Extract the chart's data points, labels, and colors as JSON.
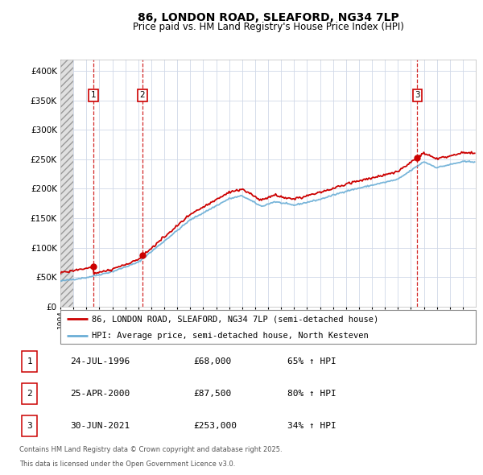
{
  "title_line1": "86, LONDON ROAD, SLEAFORD, NG34 7LP",
  "title_line2": "Price paid vs. HM Land Registry's House Price Index (HPI)",
  "legend_line1": "86, LONDON ROAD, SLEAFORD, NG34 7LP (semi-detached house)",
  "legend_line2": "HPI: Average price, semi-detached house, North Kesteven",
  "footnote_line1": "Contains HM Land Registry data © Crown copyright and database right 2025.",
  "footnote_line2": "This data is licensed under the Open Government Licence v3.0.",
  "transactions": [
    {
      "num": 1,
      "date": "24-JUL-1996",
      "price": "£68,000",
      "change": "65% ↑ HPI",
      "year": 1996.56,
      "val": 68000
    },
    {
      "num": 2,
      "date": "25-APR-2000",
      "price": "£87,500",
      "change": "80% ↑ HPI",
      "year": 2000.32,
      "val": 87500
    },
    {
      "num": 3,
      "date": "30-JUN-2021",
      "price": "£253,000",
      "change": "34% ↑ HPI",
      "year": 2021.5,
      "val": 253000
    }
  ],
  "hpi_color": "#6baed6",
  "price_color": "#cc0000",
  "ylim": [
    0,
    420000
  ],
  "yticks": [
    0,
    50000,
    100000,
    150000,
    200000,
    250000,
    300000,
    350000,
    400000
  ],
  "xmin": 1994,
  "xmax": 2026
}
